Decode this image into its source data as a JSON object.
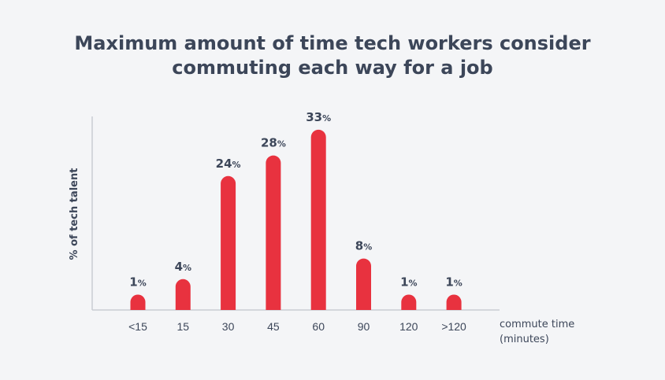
{
  "chart_data": {
    "type": "bar",
    "title": [
      "Maximum amount of time tech workers consider",
      "commuting each way for a job"
    ],
    "ylabel": "% of tech talent",
    "xlabel": [
      "commute time",
      "(minutes)"
    ],
    "categories": [
      "<15",
      "15",
      "30",
      "45",
      "60",
      "90",
      "120",
      ">120"
    ],
    "values": [
      1,
      4,
      24,
      28,
      33,
      8,
      1,
      1
    ],
    "value_suffix": "%",
    "ylim": [
      0,
      35
    ],
    "grid": false,
    "bar_color": "#e8323f",
    "text_color": "#3c4659",
    "axis_color": "#c9cdd3"
  }
}
